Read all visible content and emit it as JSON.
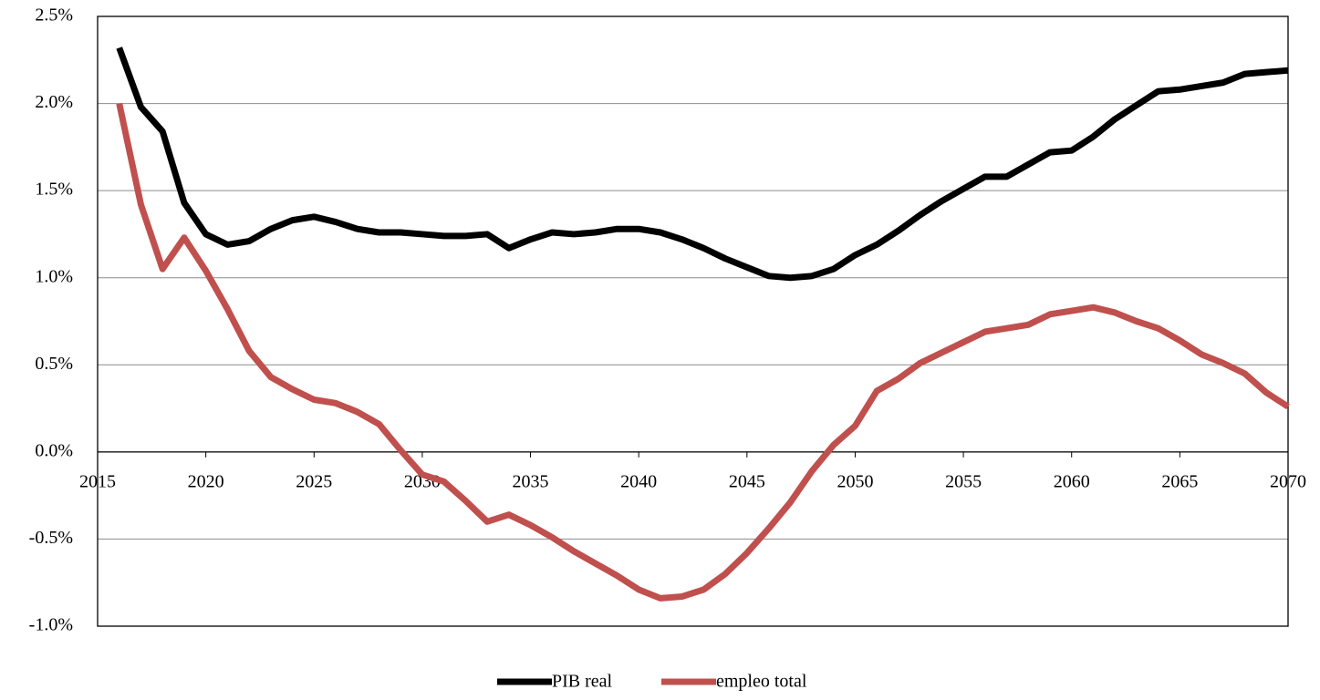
{
  "chart_data": {
    "type": "line",
    "x": [
      2016,
      2017,
      2018,
      2019,
      2020,
      2021,
      2022,
      2023,
      2024,
      2025,
      2026,
      2027,
      2028,
      2029,
      2030,
      2031,
      2032,
      2033,
      2034,
      2035,
      2036,
      2037,
      2038,
      2039,
      2040,
      2041,
      2042,
      2043,
      2044,
      2045,
      2046,
      2047,
      2048,
      2049,
      2050,
      2051,
      2052,
      2053,
      2054,
      2055,
      2056,
      2057,
      2058,
      2059,
      2060,
      2061,
      2062,
      2063,
      2064,
      2065,
      2066,
      2067,
      2068,
      2069,
      2070
    ],
    "series": [
      {
        "name": "PIB real",
        "color": "#000000",
        "values": [
          2.32,
          1.98,
          1.84,
          1.43,
          1.25,
          1.19,
          1.21,
          1.28,
          1.33,
          1.35,
          1.32,
          1.28,
          1.26,
          1.26,
          1.25,
          1.24,
          1.24,
          1.25,
          1.17,
          1.22,
          1.26,
          1.25,
          1.26,
          1.28,
          1.28,
          1.26,
          1.22,
          1.17,
          1.11,
          1.06,
          1.01,
          1.0,
          1.01,
          1.05,
          1.13,
          1.19,
          1.27,
          1.36,
          1.44,
          1.51,
          1.58,
          1.58,
          1.65,
          1.72,
          1.73,
          1.81,
          1.91,
          1.99,
          2.07,
          2.08,
          2.1,
          2.12,
          2.17,
          2.18,
          2.19
        ]
      },
      {
        "name": "empleo total",
        "color": "#c0504d",
        "values": [
          2.0,
          1.42,
          1.05,
          1.23,
          1.04,
          0.82,
          0.58,
          0.43,
          0.36,
          0.3,
          0.28,
          0.23,
          0.16,
          0.01,
          -0.13,
          -0.17,
          -0.28,
          -0.4,
          -0.36,
          -0.42,
          -0.49,
          -0.57,
          -0.64,
          -0.71,
          -0.79,
          -0.84,
          -0.83,
          -0.79,
          -0.7,
          -0.58,
          -0.44,
          -0.29,
          -0.11,
          0.04,
          0.15,
          0.35,
          0.42,
          0.51,
          0.57,
          0.63,
          0.69,
          0.71,
          0.73,
          0.79,
          0.81,
          0.83,
          0.8,
          0.75,
          0.71,
          0.64,
          0.56,
          0.51,
          0.45,
          0.34,
          0.26
        ]
      }
    ],
    "xlim": [
      2015,
      2070
    ],
    "xticks": [
      2015,
      2020,
      2025,
      2030,
      2035,
      2040,
      2045,
      2050,
      2055,
      2060,
      2065,
      2070
    ],
    "ylim": [
      -1.0,
      2.5
    ],
    "yticks": [
      {
        "value": -1.0,
        "label": "-1.0%"
      },
      {
        "value": -0.5,
        "label": "-0.5%"
      },
      {
        "value": 0.0,
        "label": "0.0%"
      },
      {
        "value": 0.5,
        "label": "0.5%"
      },
      {
        "value": 1.0,
        "label": "1.0%"
      },
      {
        "value": 1.5,
        "label": "1.5%"
      },
      {
        "value": 2.0,
        "label": "2.0%"
      },
      {
        "value": 2.5,
        "label": "2.5%"
      }
    ],
    "grid": true,
    "legend": "bottom"
  }
}
